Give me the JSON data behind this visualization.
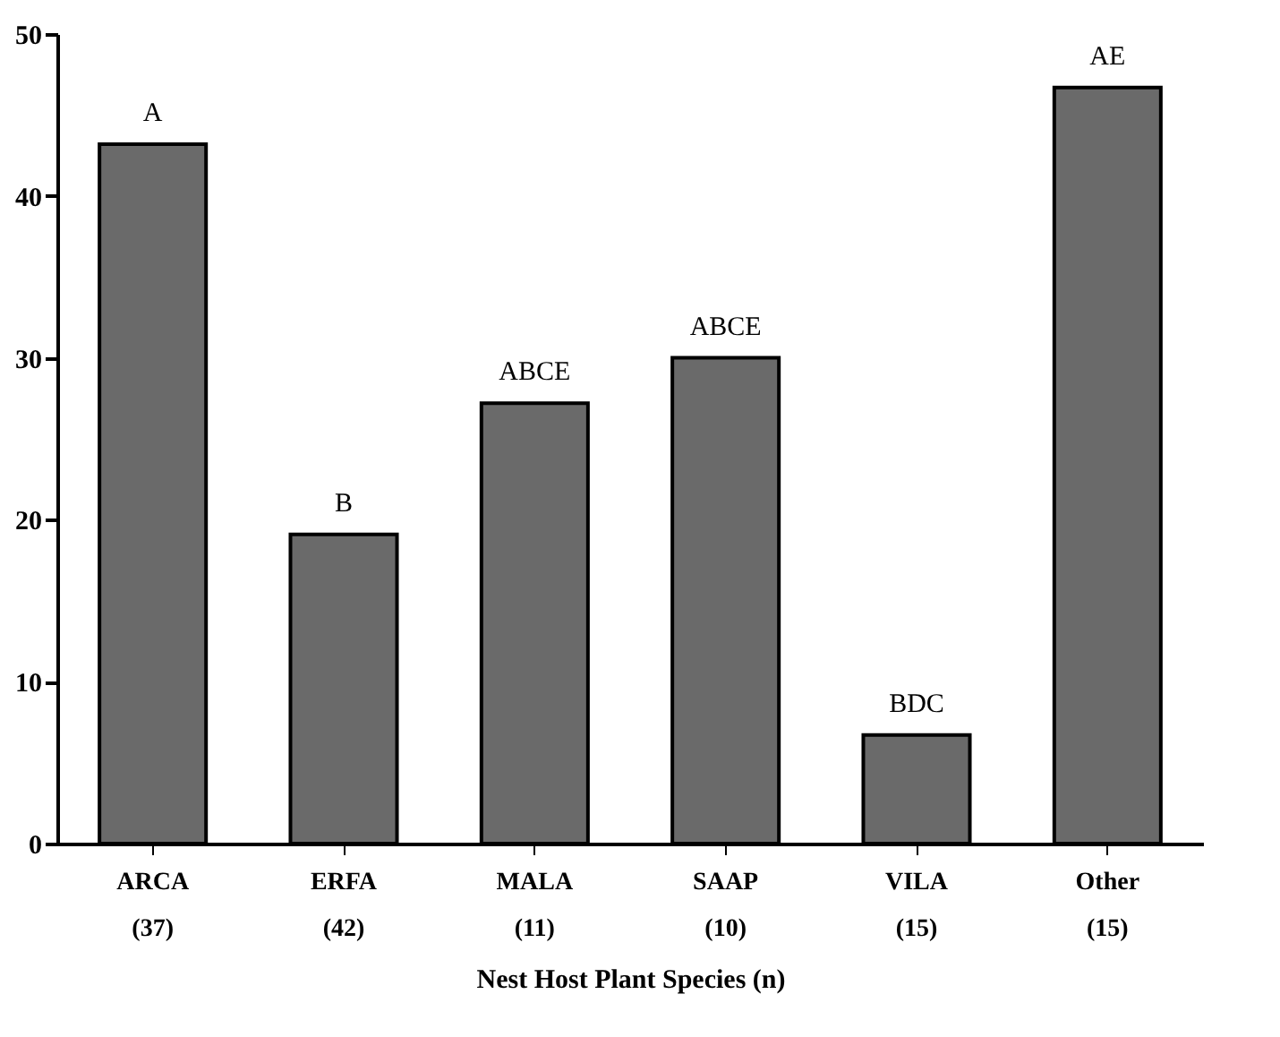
{
  "chart_data": {
    "type": "bar",
    "xlabel": "Nest Host Plant Species (n)",
    "categories": [
      "ARCA\n(37)",
      "ERFA\n(42)",
      "MALA\n(11)",
      "SAAP\n(10)",
      "VILA\n(15)",
      "Other\n(15)"
    ],
    "values": [
      43.2,
      19.1,
      27.2,
      30,
      6.7,
      46.7
    ],
    "color": "#6a6a6a",
    "ylim": [
      0,
      50
    ],
    "yticks": [
      0,
      10,
      20,
      30,
      40,
      50
    ],
    "grid": false,
    "annotations": [
      {
        "text": "A",
        "x": "ARCA\n(37)",
        "y": 43.2
      },
      {
        "text": "B",
        "x": "ERFA\n(42)",
        "y": 19.1
      },
      {
        "text": "ABCE",
        "x": "MALA\n(11)",
        "y": 27.2
      },
      {
        "text": "ABCE",
        "x": "SAAP\n(10)",
        "y": 30
      },
      {
        "text": "BDC",
        "x": "VILA\n(15)",
        "y": 6.7
      },
      {
        "text": "AE",
        "x": "Other\n(15)",
        "y": 46.7
      }
    ]
  }
}
